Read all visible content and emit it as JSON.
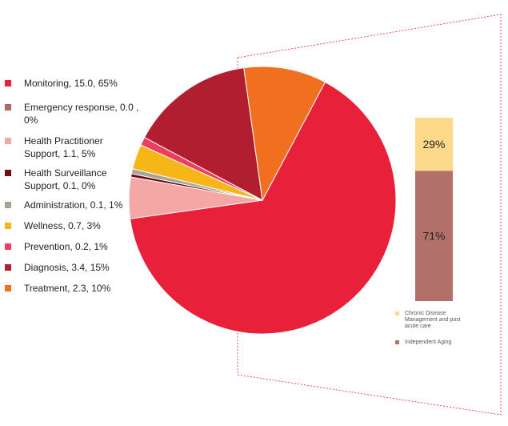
{
  "chart_data": [
    {
      "type": "pie",
      "slices": [
        {
          "label": "Monitoring, 15.0, 65%",
          "value": 65,
          "color": "#E8203A"
        },
        {
          "label": "Emergency response, 0.0 , 0%",
          "value": 0,
          "color": "#B06A62"
        },
        {
          "label": "Health Practitioner Support, 1.1, 5%",
          "value": 5,
          "color": "#F4A8A6"
        },
        {
          "label": "Health Surveillance Support, 0.1, 0%",
          "value": 0.4,
          "color": "#6B0F14"
        },
        {
          "label": "Administration, 0.1, 1%",
          "value": 0.6,
          "color": "#A8A39A"
        },
        {
          "label": "Wellness, 0.7, 3%",
          "value": 3,
          "color": "#F7B617"
        },
        {
          "label": "Prevention, 0.2, 1%",
          "value": 1,
          "color": "#EE3D5E"
        },
        {
          "label": "Diagnosis, 3.4, 15%",
          "value": 15,
          "color": "#B01E30"
        },
        {
          "label": "Treatment, 2.3, 10%",
          "value": 10,
          "color": "#F07020"
        }
      ]
    },
    {
      "type": "bar",
      "stacked": true,
      "series": [
        {
          "name": "Chronic Disease Management and post acute care",
          "value": 29,
          "label": "29%",
          "color": "#FDD98A"
        },
        {
          "name": "Independent Aging",
          "value": 71,
          "label": "71%",
          "color": "#B3706A"
        }
      ]
    }
  ],
  "colors": {
    "connector": "#E8203A"
  }
}
